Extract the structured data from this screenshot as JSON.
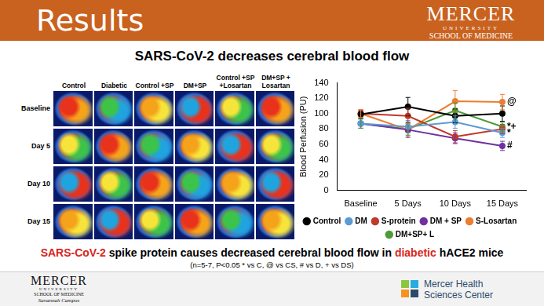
{
  "header": {
    "title": "Results",
    "logo": [
      "MERCER",
      "UNIVERSITY",
      "SCHOOL OF MEDICINE"
    ]
  },
  "heading": "SARS-CoV-2 decreases cerebral blood flow",
  "images": {
    "columns": [
      "Control",
      "Diabetic",
      "Control +SP",
      "DM+SP",
      "Control +SP +Losartan",
      "DM+SP + Losartan"
    ],
    "rows": [
      "Baseline",
      "Day 5",
      "Day 10",
      "Day 15"
    ]
  },
  "chart_data": {
    "type": "line",
    "y_label": "Blood Perfusion (PU)",
    "categories": [
      "Baseline",
      "5 Days",
      "10 Days",
      "15 Days"
    ],
    "series": [
      {
        "name": "Control",
        "color": "#000000",
        "values": [
          99,
          109,
          97,
          100
        ],
        "errors": [
          5,
          12,
          9,
          10
        ]
      },
      {
        "name": "DM",
        "color": "#5b9bd5",
        "values": [
          87,
          83,
          89,
          75
        ],
        "errors": [
          6,
          8,
          8,
          6
        ]
      },
      {
        "name": "S-protein",
        "color": "#c0392b",
        "values": [
          100,
          97,
          70,
          80
        ],
        "errors": [
          5,
          10,
          8,
          6
        ]
      },
      {
        "name": "DM + SP",
        "color": "#7030a0",
        "values": [
          87,
          79,
          68,
          58
        ],
        "errors": [
          6,
          10,
          7,
          6
        ]
      },
      {
        "name": "S-Losartan",
        "color": "#ed7d31",
        "values": [
          100,
          79,
          116,
          115
        ],
        "errors": [
          5,
          8,
          14,
          10
        ]
      },
      {
        "name": "DM+SP+ L",
        "color": "#4e9a3a",
        "values": [
          87,
          80,
          104,
          83
        ],
        "errors": [
          6,
          8,
          10,
          6
        ]
      }
    ],
    "annotations": [
      {
        "text": "@",
        "series": "S-Losartan",
        "x": "15 Days"
      },
      {
        "text": "*+",
        "series": "DM+SP+ L",
        "x": "15 Days"
      },
      {
        "text": "*",
        "series": "DM",
        "x": "15 Days"
      },
      {
        "text": "#",
        "series": "DM + SP",
        "x": "15 Days"
      }
    ],
    "ylim": [
      0,
      140
    ],
    "yticks": [
      0,
      20,
      40,
      60,
      80,
      100,
      120,
      140
    ],
    "grid": false,
    "legend": "bottom",
    "marker": "circle",
    "line_style": "solid"
  },
  "caption": [
    {
      "text": "SARS-CoV-2",
      "color": "#d9261c"
    },
    {
      "text": " spike protein causes decreased cerebral blood flow in ",
      "color": "#000000"
    },
    {
      "text": "diabetic",
      "color": "#d9261c"
    },
    {
      "text": " hACE2 mice",
      "color": "#000000"
    }
  ],
  "footnote": "(n=5-7, P<0.05 * vs C, @ vs CS, # vs D, + vs DS)",
  "footer": {
    "left": [
      "MERCER",
      "UNIVERSITY",
      "SCHOOL OF MEDICINE",
      "Savannah Campus"
    ],
    "right": [
      "Mercer Health",
      "Sciences Center"
    ]
  }
}
